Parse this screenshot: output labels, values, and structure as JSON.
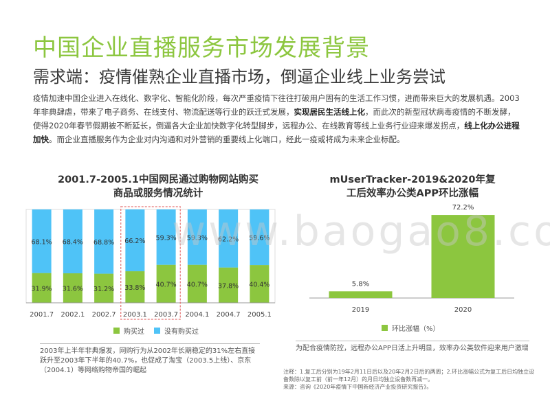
{
  "header": {
    "title": "中国企业直播服务市场发展背景",
    "subtitle": "需求端：疫情催熟企业直播市场，倒逼企业线上业务尝试"
  },
  "intro": {
    "p1": "疫情加速中国企业进入在线化、数字化、智能化阶段，每次严重疫情下往往打破用户固有的生活工作习惯，进而带来巨大的发展机遇。2003年非典肆虐，带来了电子商务、在线支付、物流配送等行业的跃迁式发展，",
    "b1": "实现居民生活线上化",
    "p2": "，而此次的新型冠状病毒疫情的不断发酵， 使得2020年春节假期被不断延长，倒逼各大企业加快数字化转型脚步，远程办公、在线教育等线上业务行业迎来爆发拐点，",
    "b2": "线上化办公进程加快",
    "p3": "。而企业直播服务作为企业对内沟通和对外营销的重要线上化端口，经此一疫或将成为未来企业标配。"
  },
  "watermark": "www.baogao8.com",
  "colors": {
    "green": "#8cc63f",
    "blue": "#4fc3f7"
  },
  "chart_data": [
    {
      "type": "bar",
      "stacked": true,
      "title_line1": "2001.7-2005.1中国网民通过购物网站购买",
      "title_line2": "商品或服务情况统计",
      "categories": [
        "2001.7",
        "2002.1",
        "2002.7",
        "2003.1",
        "2003.7",
        "2004.1",
        "2004.7",
        "2005.1"
      ],
      "series": [
        {
          "name": "购买过",
          "values": [
            31.9,
            31.6,
            31.2,
            33.8,
            40.7,
            40.7,
            37.8,
            40.4
          ]
        },
        {
          "name": "没有购买过",
          "values": [
            68.1,
            68.4,
            68.8,
            66.2,
            59.3,
            59.3,
            62.2,
            59.6
          ]
        }
      ],
      "value_labels_bottom": [
        "31.9%",
        "31.6%",
        "31.2%",
        "33.8%",
        "40.7%",
        "40.7%",
        "37.8%",
        "40.4%"
      ],
      "value_labels_top": [
        "68.1%",
        "68.4%",
        "68.8%",
        "66.2%",
        "59.3%",
        "59.3%",
        "62.2%",
        "59.6%"
      ],
      "ylim": [
        0,
        100
      ],
      "highlight_categories": [
        "2003.1",
        "2003.7"
      ],
      "legend_placement": "bottom",
      "grid": false
    },
    {
      "type": "bar",
      "title_line1": "mUserTracker-2019&2020年复",
      "title_line2": "工后效率办公类APP环比涨幅",
      "categories": [
        "2019",
        "2020"
      ],
      "series": [
        {
          "name": "环比涨幅（%）",
          "values": [
            5.8,
            72.2
          ]
        }
      ],
      "value_labels": [
        "5.8%",
        "72.2%"
      ],
      "ylim": [
        0,
        80
      ],
      "legend_placement": "bottom",
      "grid": false
    }
  ],
  "notes": {
    "left": "2003年上半年非典爆发，网购行为从2002年长期稳定的31%左右直接跃升至2003年下半年的40.7%，也促成了淘宝（2003.5上线）、京东（2004.1）等网络购物帝国的崛起",
    "right": "为配合疫情防控，远程办公APP日活上升明显，效率办公类软件迎来用户激增"
  },
  "footnote": {
    "line1": "注释：1.复工后分别为19年2月11日后以及20年2月2日后的两周；2.环比涨幅公式为复工后日均独立设备数除以复工前（前一年12月）的月日均独立设备数再减一。",
    "line2": "来源：咨询《2020年疫情下中国新经济产业投资研究报告》。"
  }
}
